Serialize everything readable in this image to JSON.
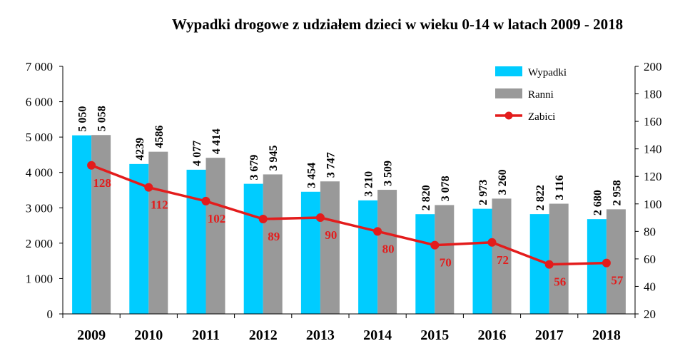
{
  "chart_data": {
    "type": "bar",
    "title": "Wypadki drogowe z udziałem dzieci w wieku 0-14 w latach 2009 - 2018",
    "categories": [
      "2009",
      "2010",
      "2011",
      "2012",
      "2013",
      "2014",
      "2015",
      "2016",
      "2017",
      "2018"
    ],
    "series": [
      {
        "name": "Wypadki",
        "type": "bar",
        "axis": "left",
        "color": "#00ccff",
        "values": [
          5050,
          4239,
          4077,
          3679,
          3454,
          3210,
          2820,
          2973,
          2822,
          2680
        ],
        "labels": [
          "5 050",
          "4239",
          "4 077",
          "3 679",
          "3 454",
          "3 210",
          "2 820",
          "2 973",
          "2 822",
          "2 680"
        ]
      },
      {
        "name": "Ranni",
        "type": "bar",
        "axis": "left",
        "color": "#999999",
        "values": [
          5058,
          4586,
          4414,
          3945,
          3747,
          3509,
          3078,
          3260,
          3116,
          2958
        ],
        "labels": [
          "5 058",
          "4586",
          "4 414",
          "3 945",
          "3 747",
          "3 509",
          "3 078",
          "3 260",
          "3 116",
          "2 958"
        ]
      },
      {
        "name": "Zabici",
        "type": "line",
        "axis": "right",
        "color": "#e31c1c",
        "values": [
          128,
          112,
          102,
          89,
          90,
          80,
          70,
          72,
          56,
          57
        ],
        "labels": [
          "128",
          "112",
          "102",
          "89",
          "90",
          "80",
          "70",
          "72",
          "56",
          "57"
        ]
      }
    ],
    "y_left": {
      "lim": [
        0,
        7000
      ],
      "ticks": [
        0,
        1000,
        2000,
        3000,
        4000,
        5000,
        6000,
        7000
      ],
      "tick_labels": [
        "0",
        "1 000",
        "2 000",
        "3 000",
        "4 000",
        "5 000",
        "6 000",
        "7 000"
      ]
    },
    "y_right": {
      "lim": [
        20,
        200
      ],
      "ticks": [
        20,
        40,
        60,
        80,
        100,
        120,
        140,
        160,
        180,
        200
      ],
      "tick_labels": [
        "20",
        "40",
        "60",
        "80",
        "100",
        "120",
        "140",
        "160",
        "180",
        "200"
      ]
    },
    "grid": false,
    "legend_position": "top-right"
  }
}
